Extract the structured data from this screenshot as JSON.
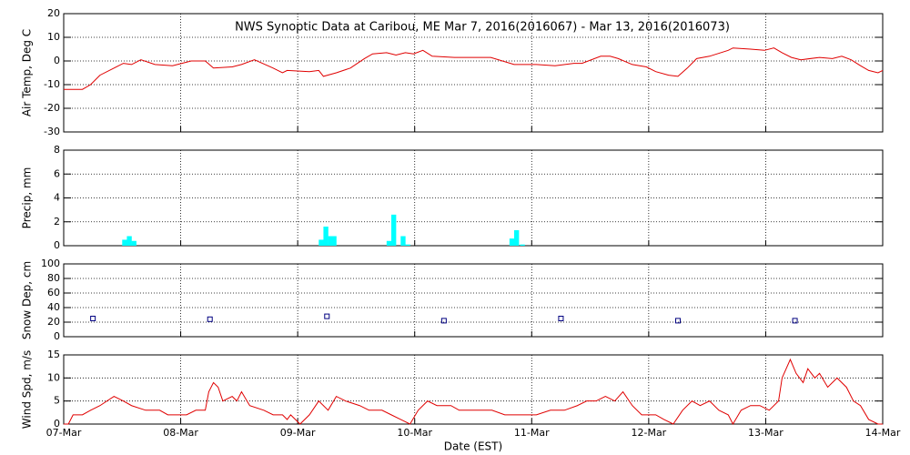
{
  "chart_data": [
    {
      "type": "line",
      "title": "NWS Synoptic Data at Caribou, ME   Mar  7, 2016(2016067) - Mar 13, 2016(2016073)",
      "y_label": "Air Temp, Deg C",
      "grid": true,
      "x": [
        0,
        0.16,
        0.23,
        0.31,
        0.43,
        0.51,
        0.58,
        0.66,
        0.78,
        0.93,
        1.09,
        1.21,
        1.28,
        1.44,
        1.52,
        1.63,
        1.79,
        1.87,
        1.91,
        2.1,
        2.18,
        2.22,
        2.33,
        2.45,
        2.57,
        2.64,
        2.76,
        2.84,
        2.92,
        2.99,
        3.07,
        3.15,
        3.34,
        3.65,
        3.85,
        4.04,
        4.2,
        4.36,
        4.43,
        4.59,
        4.67,
        4.74,
        4.86,
        4.98,
        5.06,
        5.17,
        5.25,
        5.33,
        5.41,
        5.52,
        5.68,
        5.72,
        5.87,
        5.99,
        6.07,
        6.14,
        6.22,
        6.3,
        6.46,
        6.57,
        6.65,
        6.73,
        6.81,
        6.88,
        6.96,
        7
      ],
      "series": [
        {
          "color": "#e00000",
          "values": [
            -12,
            -12,
            -10,
            -6,
            -3,
            -1,
            -1.5,
            0.5,
            -1.5,
            -2,
            0,
            0,
            -3,
            -2.5,
            -1.5,
            0.5,
            -3,
            -5,
            -4,
            -4.5,
            -4,
            -6.5,
            -5,
            -3,
            1,
            3,
            3.5,
            2.5,
            3.5,
            3,
            4.5,
            2,
            1.5,
            1.5,
            -1.5,
            -1.5,
            -2,
            -1,
            -1,
            2,
            2,
            1,
            -1.5,
            -2.5,
            -4.5,
            -6,
            -6.5,
            -3,
            1,
            2,
            4.5,
            5.5,
            5,
            4.5,
            5.5,
            3.5,
            1.5,
            0.5,
            1.5,
            1,
            2,
            0.5,
            -2,
            -4,
            -5,
            -4
          ]
        }
      ],
      "xlim": [
        0,
        7
      ],
      "xticks": [
        0,
        1,
        2,
        3,
        4,
        5,
        6,
        7
      ],
      "ylim": [
        -30,
        20
      ],
      "yticks": [
        -30,
        -20,
        -10,
        0,
        10,
        20
      ]
    },
    {
      "type": "bar",
      "y_label": "Precip, mm",
      "grid": true,
      "color": "#00ffff",
      "x": [
        0.5,
        0.54,
        0.58,
        2.18,
        2.22,
        2.26,
        2.29,
        2.76,
        2.8,
        2.88,
        2.92,
        3.81,
        3.85,
        3.9
      ],
      "values": [
        0.5,
        0.8,
        0.4,
        0.5,
        1.6,
        0.8,
        0.8,
        0.4,
        2.6,
        0.8,
        0.1,
        0.6,
        1.3,
        0.1
      ],
      "xlim": [
        0,
        7
      ],
      "xticks": [
        0,
        1,
        2,
        3,
        4,
        5,
        6,
        7
      ],
      "ylim": [
        0,
        8
      ],
      "yticks": [
        0,
        2,
        4,
        6,
        8
      ]
    },
    {
      "type": "scatter",
      "y_label": "Snow Dep, cm",
      "grid": true,
      "color": "#000080",
      "x": [
        0.25,
        1.25,
        2.25,
        3.25,
        4.25,
        5.25,
        6.25
      ],
      "values": [
        25,
        24,
        28,
        22,
        25,
        22,
        22
      ],
      "xlim": [
        0,
        7
      ],
      "xticks": [
        0,
        1,
        2,
        3,
        4,
        5,
        6,
        7
      ],
      "ylim": [
        0,
        100
      ],
      "yticks": [
        0,
        20,
        40,
        60,
        80,
        100
      ]
    },
    {
      "type": "line",
      "y_label": "Wind Spd, m/s",
      "x_label": "Date (EST)",
      "grid": true,
      "x": [
        0,
        0.04,
        0.08,
        0.16,
        0.23,
        0.31,
        0.43,
        0.51,
        0.58,
        0.7,
        0.82,
        0.89,
        0.97,
        1.05,
        1.13,
        1.21,
        1.24,
        1.28,
        1.32,
        1.36,
        1.44,
        1.48,
        1.52,
        1.59,
        1.71,
        1.79,
        1.87,
        1.91,
        1.94,
        2.02,
        2.1,
        2.18,
        2.26,
        2.33,
        2.41,
        2.53,
        2.61,
        2.72,
        2.8,
        2.88,
        2.96,
        3.03,
        3.11,
        3.19,
        3.31,
        3.38,
        3.5,
        3.66,
        3.77,
        3.89,
        4.04,
        4.16,
        4.28,
        4.39,
        4.47,
        4.55,
        4.63,
        4.71,
        4.78,
        4.86,
        4.94,
        5.06,
        5.13,
        5.21,
        5.29,
        5.37,
        5.44,
        5.52,
        5.6,
        5.68,
        5.72,
        5.79,
        5.87,
        5.95,
        6.03,
        6.11,
        6.14,
        6.21,
        6.26,
        6.32,
        6.36,
        6.42,
        6.46,
        6.53,
        6.61,
        6.69,
        6.75,
        6.81,
        6.88,
        6.96,
        7
      ],
      "series": [
        {
          "color": "#e00000",
          "values": [
            0,
            0,
            2,
            2,
            3,
            4,
            6,
            5,
            4,
            3,
            3,
            2,
            2,
            2,
            3,
            3,
            7,
            9,
            8,
            5,
            6,
            5,
            7,
            4,
            3,
            2,
            2,
            1,
            2,
            0,
            2,
            5,
            3,
            6,
            5,
            4,
            3,
            3,
            2,
            1,
            0,
            3,
            5,
            4,
            4,
            3,
            3,
            3,
            2,
            2,
            2,
            3,
            3,
            4,
            5,
            5,
            6,
            5,
            7,
            4,
            2,
            2,
            1,
            0,
            3,
            5,
            4,
            5,
            3,
            2,
            0,
            3,
            4,
            4,
            3,
            5,
            10,
            14,
            11,
            9,
            12,
            10,
            11,
            8,
            10,
            8,
            5,
            4,
            1,
            0,
            0
          ]
        }
      ],
      "xlim": [
        0,
        7
      ],
      "xticks": [
        {
          "value": 0,
          "label": "07-Mar"
        },
        {
          "value": 1,
          "label": "08-Mar"
        },
        {
          "value": 2,
          "label": "09-Mar"
        },
        {
          "value": 3,
          "label": "10-Mar"
        },
        {
          "value": 4,
          "label": "11-Mar"
        },
        {
          "value": 5,
          "label": "12-Mar"
        },
        {
          "value": 6,
          "label": "13-Mar"
        },
        {
          "value": 7,
          "label": "14-Mar"
        }
      ],
      "ylim": [
        0,
        15
      ],
      "yticks": [
        0,
        5,
        10,
        15
      ]
    }
  ]
}
